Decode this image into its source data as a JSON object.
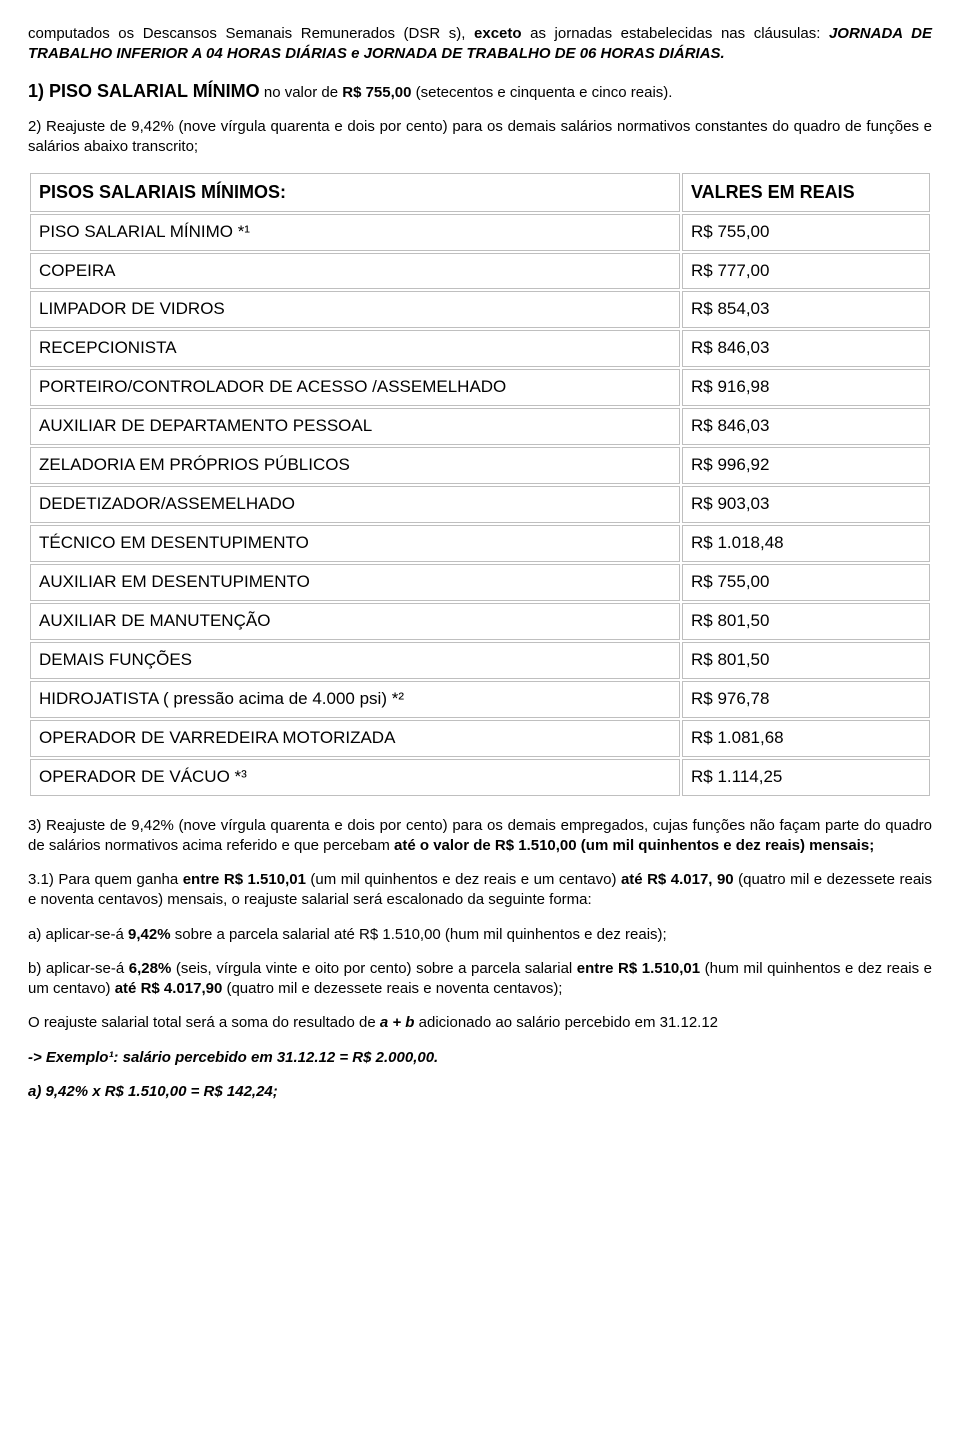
{
  "intro": {
    "line1_a": "computados os Descansos Semanais Remunerados (DSR s), ",
    "line1_b": "exceto",
    "line1_c": " as jornadas estabelecidas nas cláusulas: ",
    "line1_d": "JORNADA DE TRABALHO INFERIOR A 04 HORAS DIÁRIAS e JORNADA DE TRABALHO DE 06 HORAS DIÁRIAS."
  },
  "p1": {
    "lead": "1) PISO SALARIAL MÍNIMO",
    "rest_a": " no valor de ",
    "rest_b": "R$ 755,00",
    "rest_c": " (setecentos e cinquenta e cinco reais)."
  },
  "p2": "2) Reajuste de 9,42% (nove vírgula quarenta e dois por cento)  para os demais salários normativos constantes do quadro de funções e salários abaixo transcrito;",
  "table": {
    "header_left": "PISOS SALARIAIS MÍNIMOS:",
    "header_right": "VALRES EM REAIS",
    "rows": [
      {
        "label": "PISO SALARIAL MÍNIMO *¹",
        "value": "R$  755,00"
      },
      {
        "label": "COPEIRA",
        "value": "R$  777,00"
      },
      {
        "label": "LIMPADOR DE VIDROS",
        "value": "R$  854,03"
      },
      {
        "label": "RECEPCIONISTA",
        "value": "R$  846,03"
      },
      {
        "label": "PORTEIRO/CONTROLADOR DE ACESSO /ASSEMELHADO",
        "value": "R$  916,98"
      },
      {
        "label": "AUXILIAR DE DEPARTAMENTO PESSOAL",
        "value": "R$  846,03"
      },
      {
        "label": "ZELADORIA EM PRÓPRIOS PÚBLICOS",
        "value": "R$  996,92"
      },
      {
        "label": "DEDETIZADOR/ASSEMELHADO",
        "value": "R$  903,03"
      },
      {
        "label": "TÉCNICO EM DESENTUPIMENTO",
        "value": "R$ 1.018,48"
      },
      {
        "label": "AUXILIAR EM DESENTUPIMENTO",
        "value": "R$  755,00"
      },
      {
        "label": "AUXILIAR DE MANUTENÇÃO",
        "value": "R$  801,50"
      },
      {
        "label": "DEMAIS FUNÇÕES",
        "value": "R$  801,50"
      },
      {
        "label": "HIDROJATISTA ( pressão acima de 4.000 psi) *²",
        "value": "R$  976,78"
      },
      {
        "label": "OPERADOR DE VARREDEIRA MOTORIZADA",
        "value": "R$ 1.081,68"
      },
      {
        "label": "OPERADOR DE VÁCUO *³",
        "value": "R$ 1.114,25"
      }
    ]
  },
  "p3": {
    "a": "3) Reajuste de 9,42% (nove vírgula quarenta e dois por cento)  para os demais empregados, cujas funções não façam parte do quadro de salários normativos acima referido e que percebam ",
    "b": "até o valor de R$ 1.510,00 (um mil quinhentos e dez reais) mensais;"
  },
  "p31": {
    "a": "3.1) Para quem ganha ",
    "b": "entre R$ 1.510,01",
    "c": " (um mil quinhentos e dez reais e um centavo) ",
    "d": "até R$ 4.017, 90",
    "e": " (quatro mil e dezessete reais e noventa centavos) mensais, o reajuste salarial será escalonado da seguinte forma:"
  },
  "pa": {
    "a": "a) aplicar-se-á ",
    "b": "9,42%",
    "c": "  sobre a parcela salarial até R$ 1.510,00 (hum mil quinhentos e dez reais);"
  },
  "pb": {
    "a": "b) aplicar-se-á ",
    "b": "6,28%",
    "c": " (seis, vírgula vinte e oito por cento) sobre a parcela salarial ",
    "d": "entre R$ 1.510,01",
    "e": " (hum mil quinhentos e dez reais e um centavo) ",
    "f": "até R$ 4.017,90",
    "g": " (quatro mil e dezessete reais e noventa centavos);"
  },
  "psoma": {
    "a": "O reajuste salarial total será a soma do resultado de   ",
    "b": "a   +   b",
    "c": "   adicionado ao salário percebido em 31.12.12"
  },
  "pexemplo": "-> Exemplo¹: salário percebido em 31.12.12 = R$ 2.000,00.",
  "pcalc": "a)  9,42% x R$ 1.510,00 = R$ 142,24;"
}
